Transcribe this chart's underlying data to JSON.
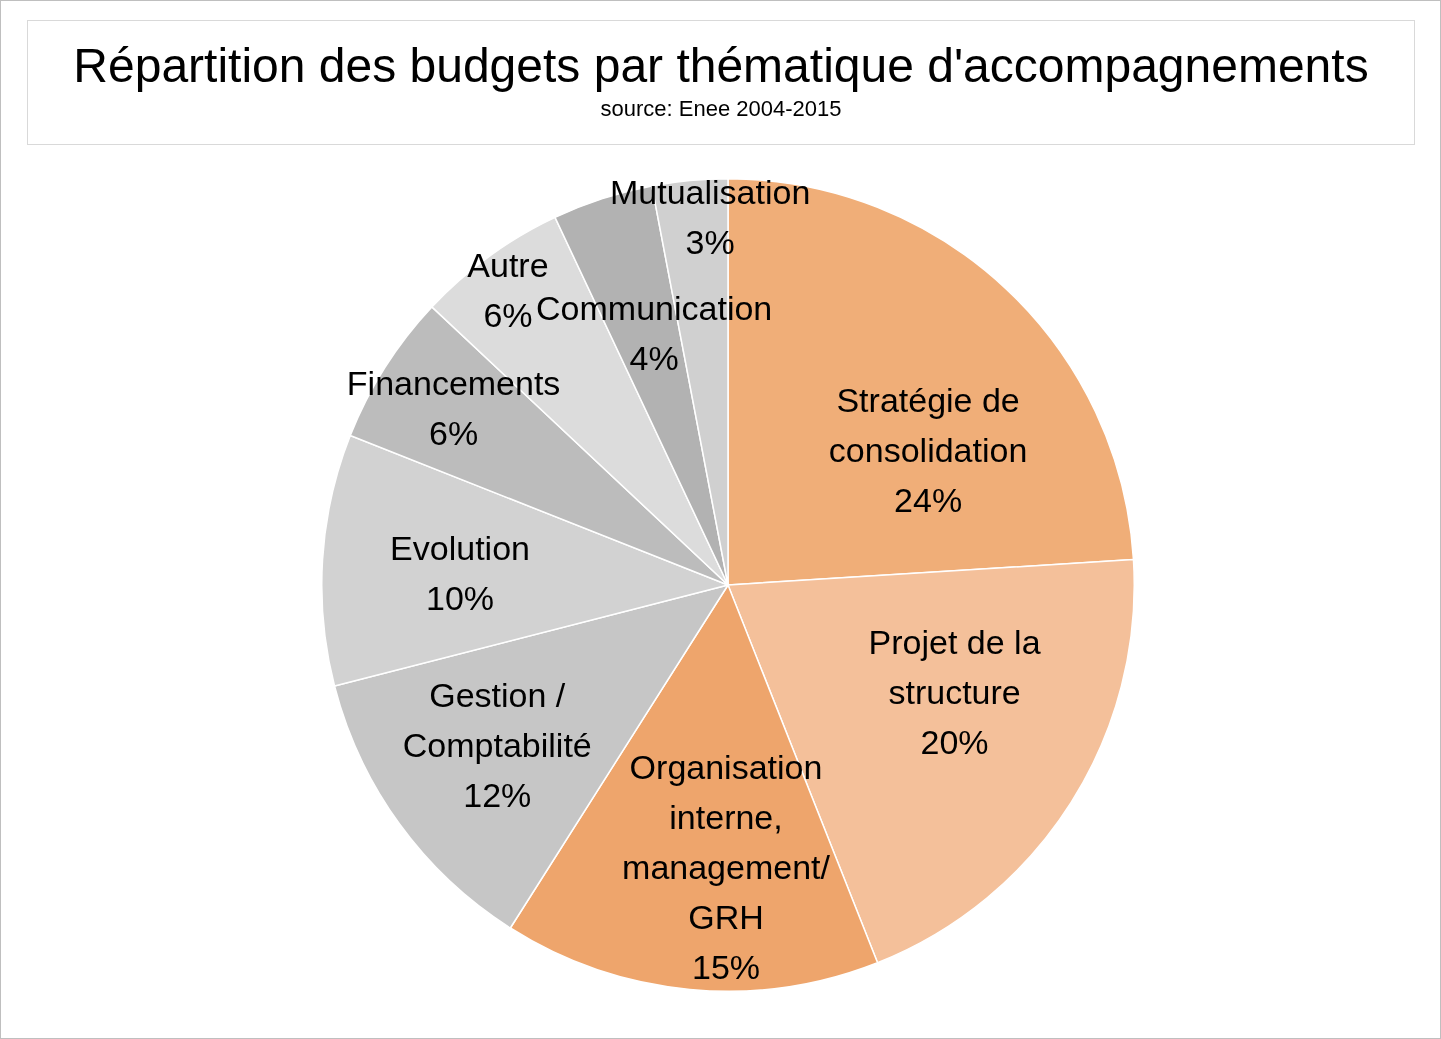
{
  "chart_data": {
    "type": "pie",
    "title": "Répartition des budgets par thématique d'accompagnements",
    "annotations": [
      "source: Enee 2004-2015"
    ],
    "categories": [
      "Stratégie de consolidation",
      "Projet de la structure",
      "Organisation interne, management/GRH",
      "Gestion / Comptabilité",
      "Evolution",
      "Financements",
      "Autre",
      "Communication",
      "Mutualisation"
    ],
    "values": [
      24,
      20,
      15,
      12,
      10,
      6,
      6,
      4,
      3
    ],
    "value_labels": [
      "24%",
      "20%",
      "15%",
      "12%",
      "10%",
      "6%",
      "6%",
      "4%",
      "3%"
    ],
    "colors": [
      "#f0ae78",
      "#f4c09a",
      "#eea56c",
      "#c6c6c6",
      "#d2d2d2",
      "#bcbcbc",
      "#dcdcdc",
      "#b2b2b2",
      "#d0d0d0"
    ]
  }
}
